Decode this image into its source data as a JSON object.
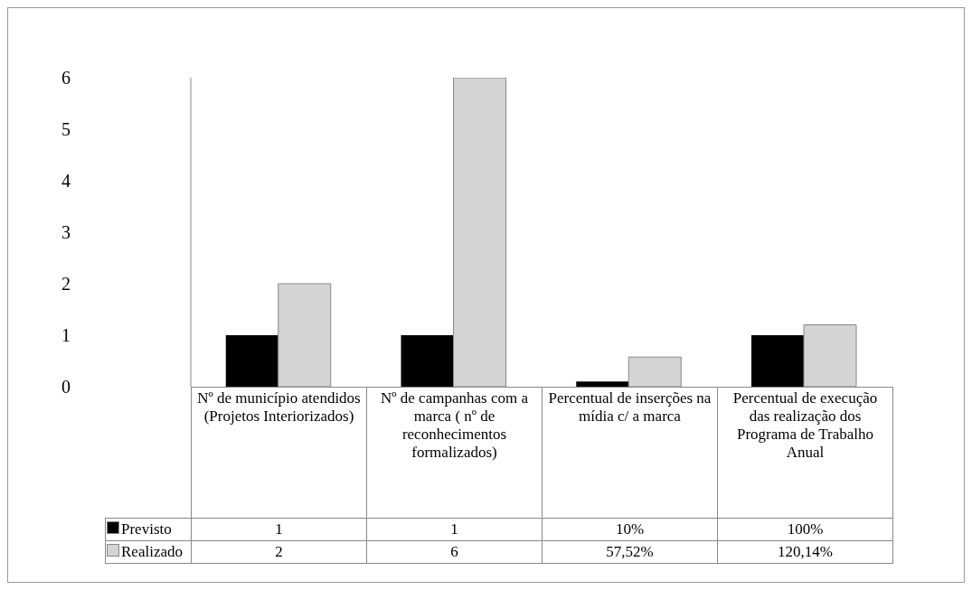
{
  "chart_data": {
    "type": "bar",
    "categories": [
      "Nº de município atendidos (Projetos Interiorizados)",
      "Nº de campanhas com a marca ( nº de reconhecimentos formalizados)",
      "Percentual de inserções na mídia c/ a marca",
      "Percentual de execução das realização dos Programa de Trabalho Anual"
    ],
    "series": [
      {
        "name": "Previsto",
        "color": "#000000",
        "values": [
          1,
          1,
          0.1,
          1
        ],
        "value_labels": [
          "1",
          "1",
          "10%",
          "100%"
        ]
      },
      {
        "name": "Realizado",
        "color": "#d4d4d4",
        "values": [
          2,
          6,
          0.5752,
          1.2014
        ],
        "value_labels": [
          "2",
          "6",
          "57,52%",
          "120,14%"
        ]
      }
    ],
    "legend": "bottom left",
    "ylim": [
      0,
      6
    ],
    "yticks": [
      0,
      1,
      2,
      3,
      4,
      5,
      6
    ]
  }
}
